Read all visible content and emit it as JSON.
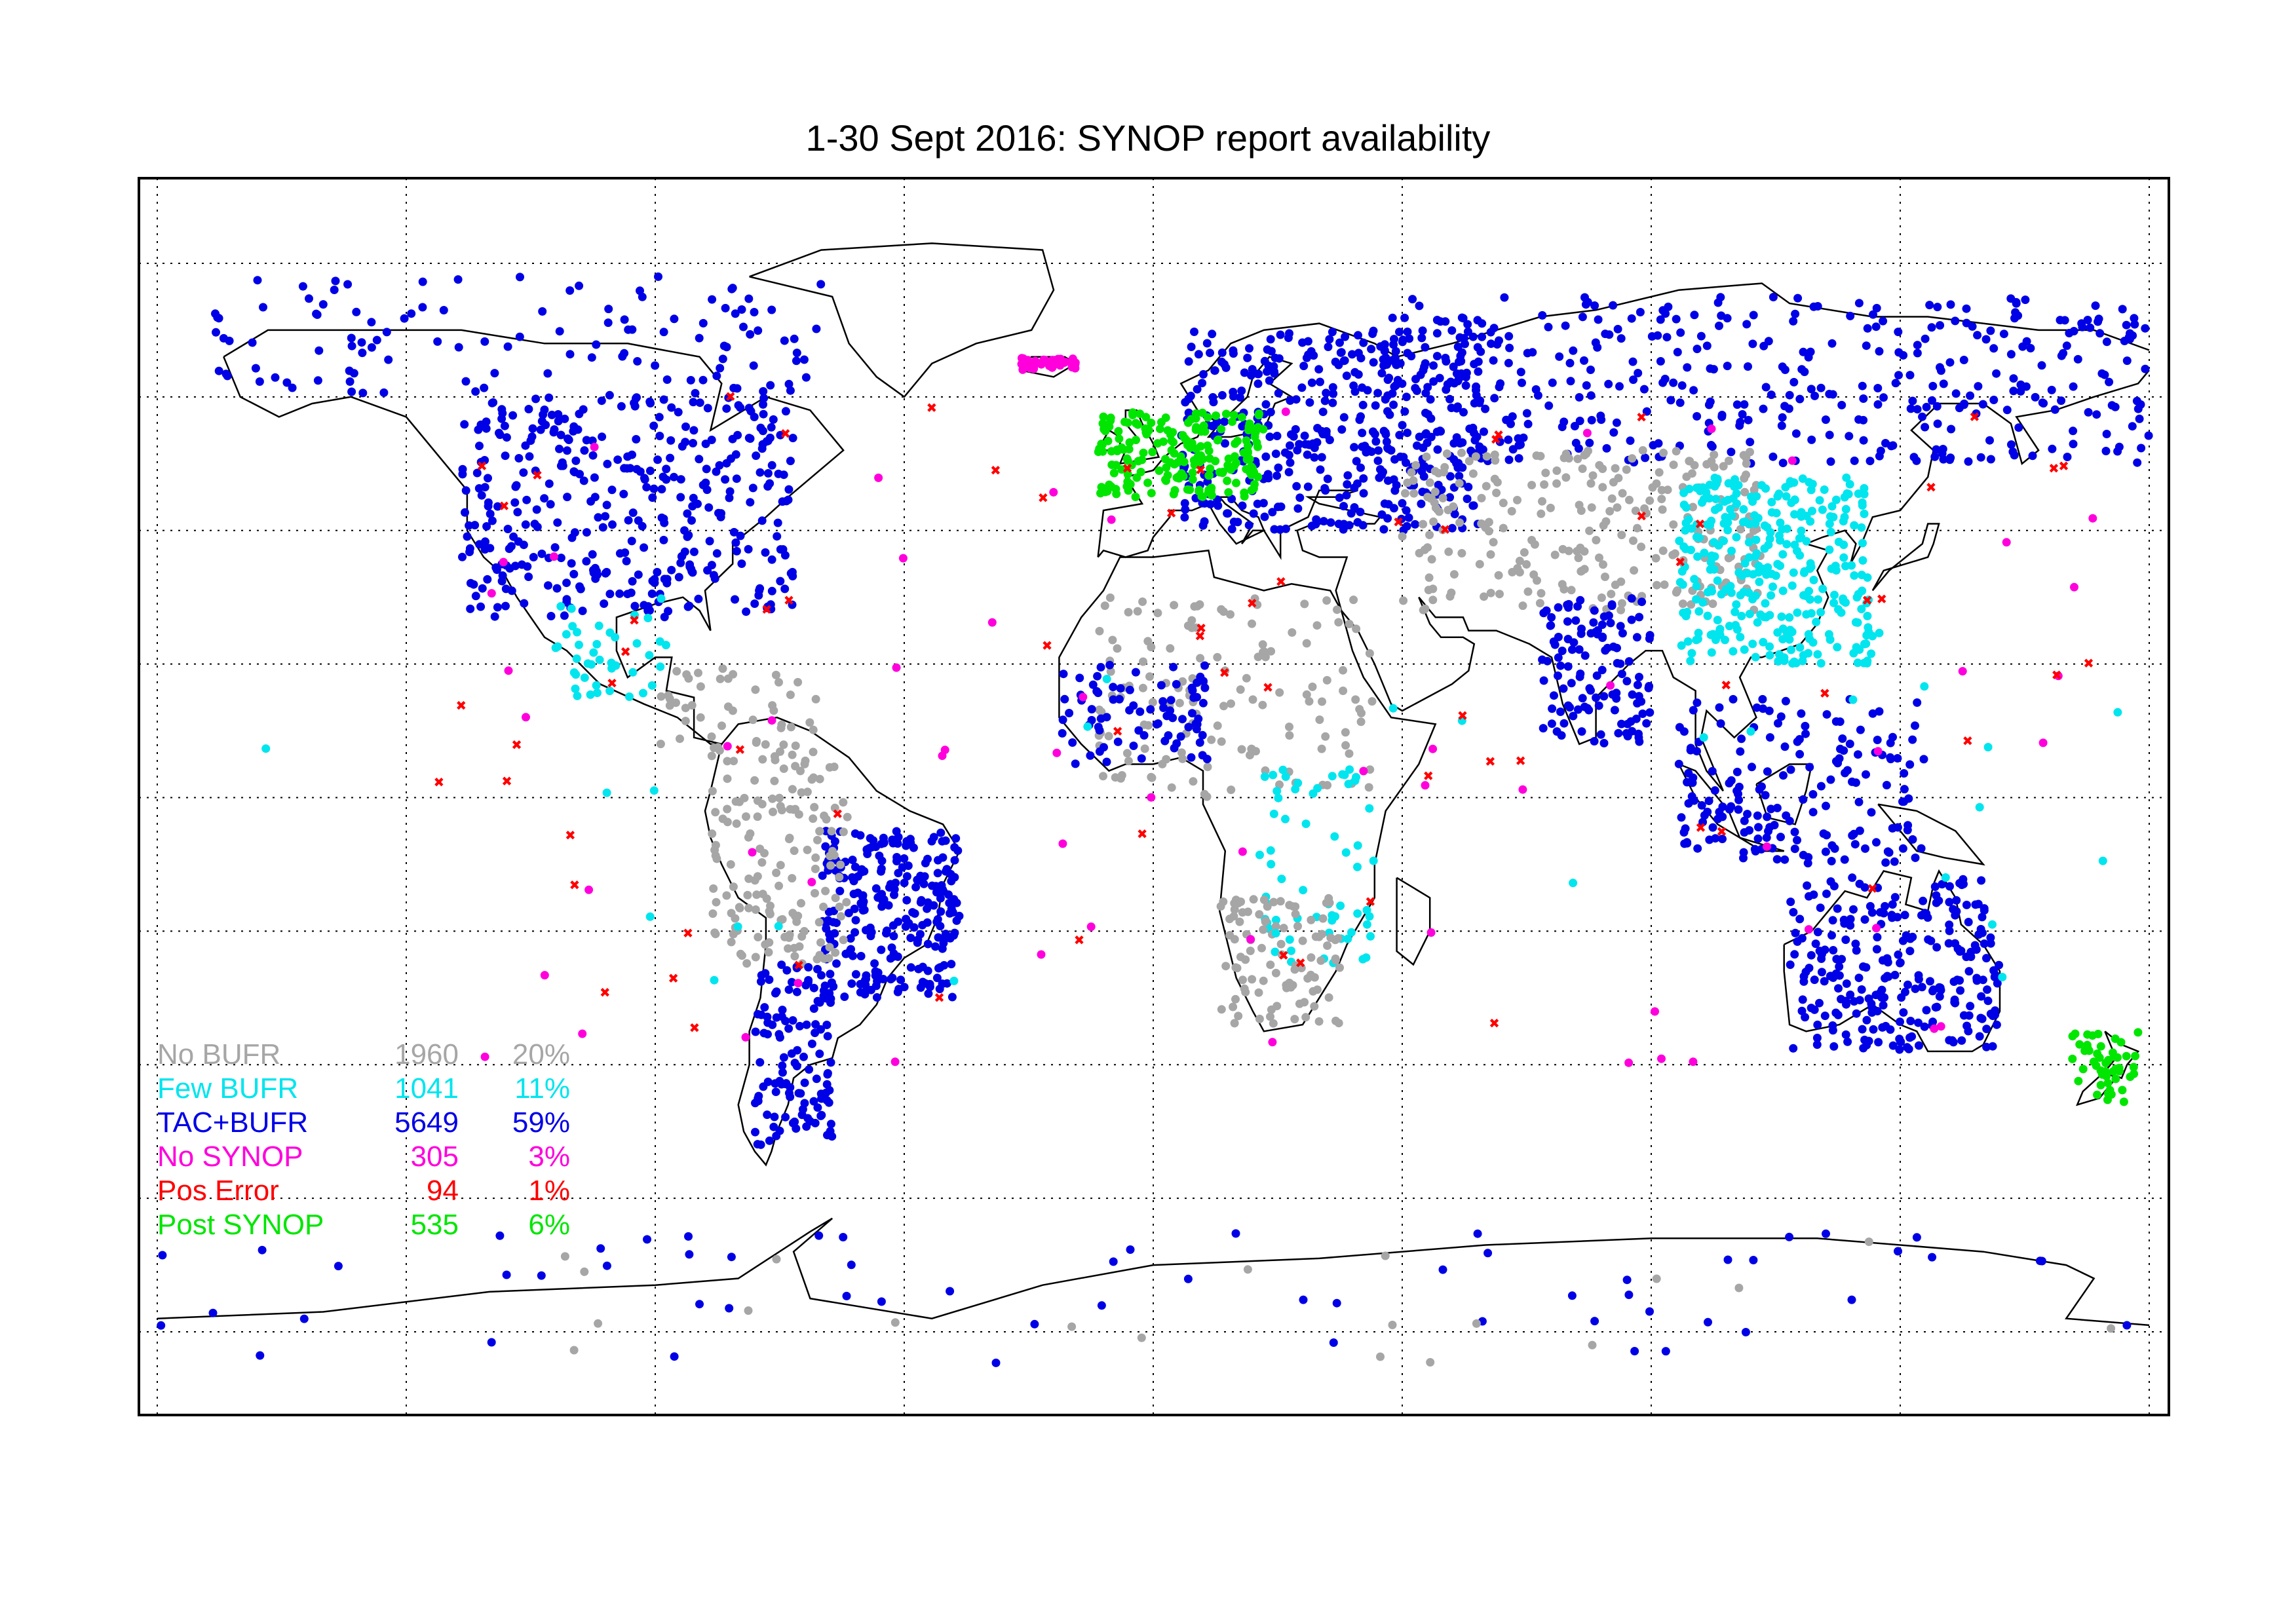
{
  "title": "1-30 Sept 2016: SYNOP report availability",
  "legend": [
    {
      "label": "No BUFR",
      "count": "1960",
      "pct": "20%",
      "color": "#a6a6a6",
      "key": "nobufr"
    },
    {
      "label": "Few BUFR",
      "count": "1041",
      "pct": "11%",
      "color": "#00e5ee",
      "key": "fewbufr"
    },
    {
      "label": "TAC+BUFR",
      "count": "5649",
      "pct": "59%",
      "color": "#0000e6",
      "key": "tacbufr"
    },
    {
      "label": "No SYNOP",
      "count": "305",
      "pct": "3%",
      "color": "#ff00dd",
      "key": "nosynop"
    },
    {
      "label": "Pos Error",
      "count": "94",
      "pct": "1%",
      "color": "#ff0000",
      "key": "poserror"
    },
    {
      "label": "Post SYNOP",
      "count": "535",
      "pct": "6%",
      "color": "#00e600",
      "key": "postsynop"
    }
  ],
  "map": {
    "projection": "equirectangular",
    "lon_range": [
      -180,
      180
    ],
    "lat_range": [
      -90,
      90
    ],
    "grid_lon_step": 45,
    "grid_lat_step": 20,
    "grid_style": "dotted"
  },
  "stations": [
    {
      "region": "Europe (dense)",
      "category": "tacbufr",
      "lon": [
        5,
        60
      ],
      "lat": [
        40,
        70
      ],
      "n": 420
    },
    {
      "region": "Western Europe",
      "category": "postsynop",
      "lon": [
        -10,
        20
      ],
      "lat": [
        45,
        58
      ],
      "n": 200
    },
    {
      "region": "Russia / Siberia",
      "category": "tacbufr",
      "lon": [
        40,
        180
      ],
      "lat": [
        50,
        75
      ],
      "n": 420
    },
    {
      "region": "Central Asia",
      "category": "nobufr",
      "lon": [
        45,
        110
      ],
      "lat": [
        28,
        52
      ],
      "n": 260
    },
    {
      "region": "China",
      "category": "fewbufr",
      "lon": [
        95,
        130
      ],
      "lat": [
        20,
        48
      ],
      "n": 320
    },
    {
      "region": "North America",
      "category": "tacbufr",
      "lon": [
        -125,
        -65
      ],
      "lat": [
        27,
        60
      ],
      "n": 380
    },
    {
      "region": "Arctic Canada",
      "category": "tacbufr",
      "lon": [
        -170,
        -60
      ],
      "lat": [
        60,
        78
      ],
      "n": 120
    },
    {
      "region": "Mexico",
      "category": "fewbufr",
      "lon": [
        -108,
        -88
      ],
      "lat": [
        15,
        30
      ],
      "n": 40
    },
    {
      "region": "Central America",
      "category": "nobufr",
      "lon": [
        -90,
        -60
      ],
      "lat": [
        8,
        20
      ],
      "n": 40
    },
    {
      "region": "Brazil",
      "category": "tacbufr",
      "lon": [
        -60,
        -35
      ],
      "lat": [
        -30,
        -5
      ],
      "n": 260
    },
    {
      "region": "South America west",
      "category": "nobufr",
      "lon": [
        -80,
        -55
      ],
      "lat": [
        -25,
        8
      ],
      "n": 160
    },
    {
      "region": "Argentina",
      "category": "tacbufr",
      "lon": [
        -72,
        -58
      ],
      "lat": [
        -52,
        -25
      ],
      "n": 120
    },
    {
      "region": "Africa north",
      "category": "nobufr",
      "lon": [
        -10,
        40
      ],
      "lat": [
        0,
        30
      ],
      "n": 140
    },
    {
      "region": "West Africa",
      "category": "tacbufr",
      "lon": [
        -17,
        10
      ],
      "lat": [
        5,
        20
      ],
      "n": 80
    },
    {
      "region": "East Africa",
      "category": "fewbufr",
      "lon": [
        20,
        40
      ],
      "lat": [
        -25,
        5
      ],
      "n": 60
    },
    {
      "region": "Southern Africa",
      "category": "nobufr",
      "lon": [
        12,
        35
      ],
      "lat": [
        -34,
        -15
      ],
      "n": 100
    },
    {
      "region": "India",
      "category": "tacbufr",
      "lon": [
        70,
        90
      ],
      "lat": [
        8,
        30
      ],
      "n": 120
    },
    {
      "region": "Southeast Asia",
      "category": "tacbufr",
      "lon": [
        95,
        140
      ],
      "lat": [
        -10,
        15
      ],
      "n": 180
    },
    {
      "region": "Australia",
      "category": "tacbufr",
      "lon": [
        115,
        153
      ],
      "lat": [
        -38,
        -12
      ],
      "n": 260
    },
    {
      "region": "New Zealand",
      "category": "postsynop",
      "lon": [
        166,
        178
      ],
      "lat": [
        -46,
        -35
      ],
      "n": 50
    },
    {
      "region": "Iceland",
      "category": "nosynop",
      "lon": [
        -24,
        -14
      ],
      "lat": [
        64,
        66
      ],
      "n": 40
    },
    {
      "region": "Antarctica",
      "category": "tacbufr",
      "lon": [
        -180,
        180
      ],
      "lat": [
        -85,
        -65
      ],
      "n": 60
    },
    {
      "region": "Antarctica",
      "category": "nobufr",
      "lon": [
        -180,
        180
      ],
      "lat": [
        -85,
        -65
      ],
      "n": 20
    },
    {
      "region": "Pacific islands",
      "category": "fewbufr",
      "lon": [
        -180,
        180
      ],
      "lat": [
        -30,
        25
      ],
      "n": 30
    },
    {
      "region": "Global scattered",
      "category": "nosynop",
      "lon": [
        -130,
        170
      ],
      "lat": [
        -40,
        60
      ],
      "n": 60
    },
    {
      "region": "Global scattered",
      "category": "poserror",
      "lon": [
        -130,
        170
      ],
      "lat": [
        -40,
        60
      ],
      "n": 70
    }
  ]
}
